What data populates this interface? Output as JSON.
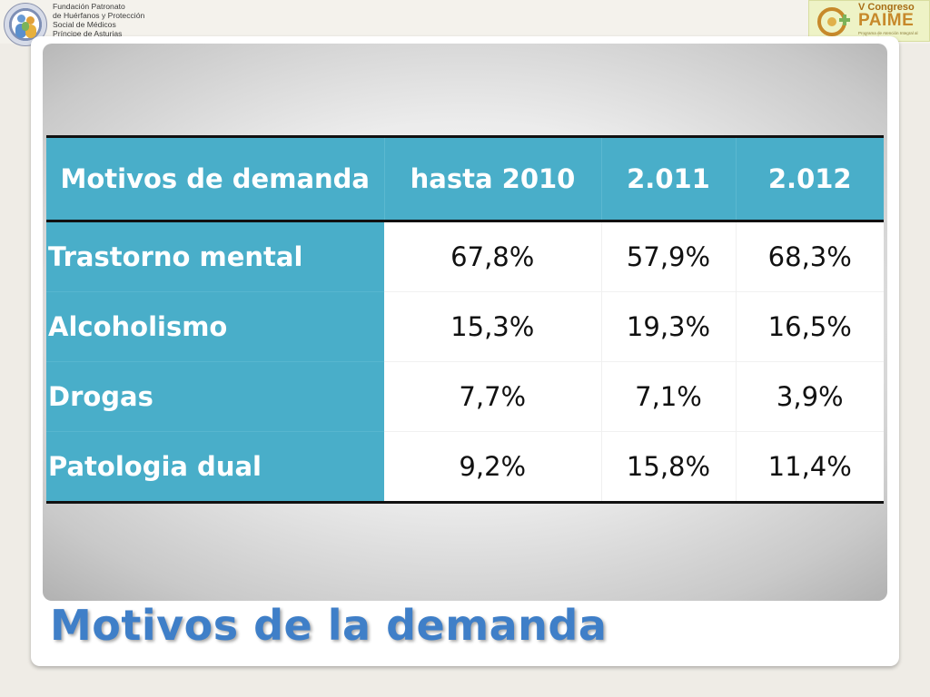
{
  "header": {
    "left_logo": {
      "seal_text": "FUNDACIÓN MÉDICA ASTURIAS",
      "lines": [
        "Fundación Patronato",
        "de Huérfanos y Protección",
        "Social de Médicos",
        "Príncipe de Asturias"
      ]
    },
    "right_logo": {
      "line1": "V Congreso",
      "line2": "PAIME",
      "line3": "Programa de Atención Integral al Médico Enfermo"
    }
  },
  "table": {
    "columns": [
      "Motivos de demanda",
      "hasta 2010",
      "2.011",
      "2.012"
    ],
    "rows": [
      {
        "label": "Trastorno mental",
        "values": [
          "67,8%",
          "57,9%",
          "68,3%"
        ]
      },
      {
        "label": "Alcoholismo",
        "values": [
          "15,3%",
          "19,3%",
          "16,5%"
        ]
      },
      {
        "label": "Drogas",
        "values": [
          "7,7%",
          "7,1%",
          "3,9%"
        ]
      },
      {
        "label": "Patologia dual",
        "values": [
          "9,2%",
          "15,8%",
          "11,4%"
        ]
      }
    ]
  },
  "title": "Motivos de la demanda",
  "colors": {
    "accent": "#49aec9",
    "title": "#3f7fc8"
  }
}
